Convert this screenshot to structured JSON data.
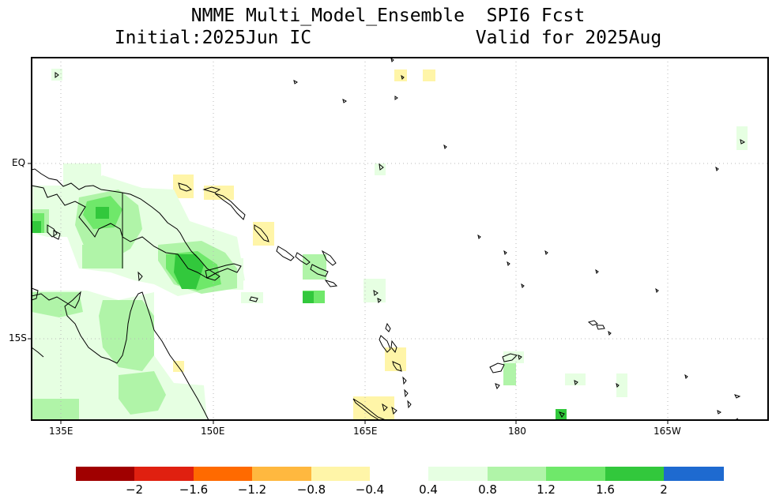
{
  "title": {
    "line1": "NMME Multi_Model_Ensemble  SPI6 Fcst",
    "initial": "Initial:2025Jun IC",
    "valid": "Valid for 2025Aug"
  },
  "map": {
    "lon_range": [
      128,
      192
    ],
    "lat_range": [
      -22,
      9
    ],
    "x_ticks": [
      "135E",
      "150E",
      "165E",
      "180",
      "165W"
    ],
    "y_ticks": [
      "EQ",
      "15S"
    ]
  },
  "colorbar": {
    "dry_colors": [
      "#a00000",
      "#e02010",
      "#ff6a00",
      "#ffb83f",
      "#fff5a8"
    ],
    "wet_colors": [
      "#e6ffe2",
      "#b0f4a8",
      "#6fe86a",
      "#32c83c",
      "#1e6ad0"
    ],
    "labels": [
      "−2",
      "−1.6",
      "−1.2",
      "−0.8",
      "−0.4",
      "0.4",
      "0.8",
      "1.2",
      "1.6",
      "2"
    ]
  },
  "colors": {
    "frame": "#000000",
    "grid": "#b8b8b8",
    "coast": "#000000"
  }
}
